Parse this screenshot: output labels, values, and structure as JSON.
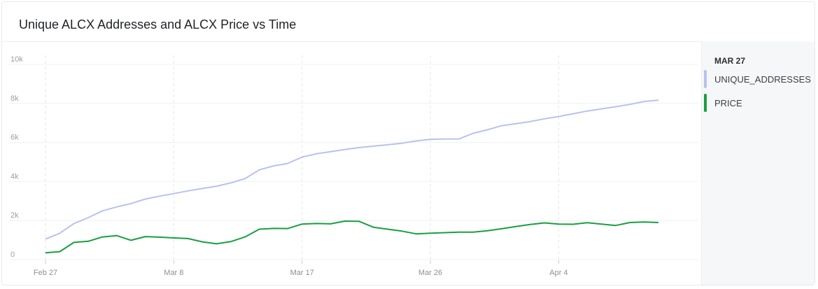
{
  "chart_data": {
    "type": "line",
    "title": "Unique ALCX Addresses and ALCX Price vs Time",
    "xlabel": "",
    "ylabel": "",
    "x": [
      "2022-02-27",
      "2022-02-28",
      "2022-03-01",
      "2022-03-02",
      "2022-03-03",
      "2022-03-04",
      "2022-03-05",
      "2022-03-06",
      "2022-03-07",
      "2022-03-08",
      "2022-03-09",
      "2022-03-10",
      "2022-03-11",
      "2022-03-12",
      "2022-03-13",
      "2022-03-14",
      "2022-03-15",
      "2022-03-16",
      "2022-03-17",
      "2022-03-18",
      "2022-03-19",
      "2022-03-20",
      "2022-03-21",
      "2022-03-22",
      "2022-03-23",
      "2022-03-24",
      "2022-03-25",
      "2022-03-26",
      "2022-03-27",
      "2022-03-28",
      "2022-03-29",
      "2022-03-30",
      "2022-03-31",
      "2022-04-01",
      "2022-04-02",
      "2022-04-03",
      "2022-04-04",
      "2022-04-05",
      "2022-04-06",
      "2022-04-07",
      "2022-04-08",
      "2022-04-09",
      "2022-04-10",
      "2022-04-11"
    ],
    "x_ticks": [
      "Feb 27",
      "Mar 8",
      "Mar 17",
      "Mar 26",
      "Apr 4"
    ],
    "y_ticks": [
      "0",
      "2k",
      "4k",
      "6k",
      "8k",
      "10k"
    ],
    "ylim": [
      0,
      10000
    ],
    "grid": true,
    "legend_position": "right",
    "legend_date": "MAR 27",
    "series": [
      {
        "name": "UNIQUE_ADDRESSES",
        "color": "#b7c3ec",
        "values": [
          1050,
          1350,
          1850,
          2150,
          2500,
          2700,
          2870,
          3100,
          3250,
          3380,
          3520,
          3640,
          3760,
          3930,
          4150,
          4600,
          4800,
          4930,
          5250,
          5420,
          5530,
          5640,
          5740,
          5810,
          5880,
          5960,
          6080,
          6160,
          6180,
          6180,
          6470,
          6650,
          6860,
          6960,
          7070,
          7210,
          7330,
          7470,
          7610,
          7720,
          7830,
          7950,
          8100,
          8170
        ]
      },
      {
        "name": "PRICE",
        "color": "#19a040",
        "values": [
          350,
          410,
          880,
          940,
          1160,
          1230,
          990,
          1180,
          1150,
          1110,
          1080,
          910,
          810,
          920,
          1160,
          1560,
          1600,
          1590,
          1820,
          1850,
          1830,
          1970,
          1960,
          1660,
          1560,
          1460,
          1320,
          1350,
          1380,
          1410,
          1410,
          1480,
          1580,
          1690,
          1800,
          1880,
          1820,
          1810,
          1890,
          1820,
          1750,
          1900,
          1930,
          1900
        ]
      }
    ]
  }
}
